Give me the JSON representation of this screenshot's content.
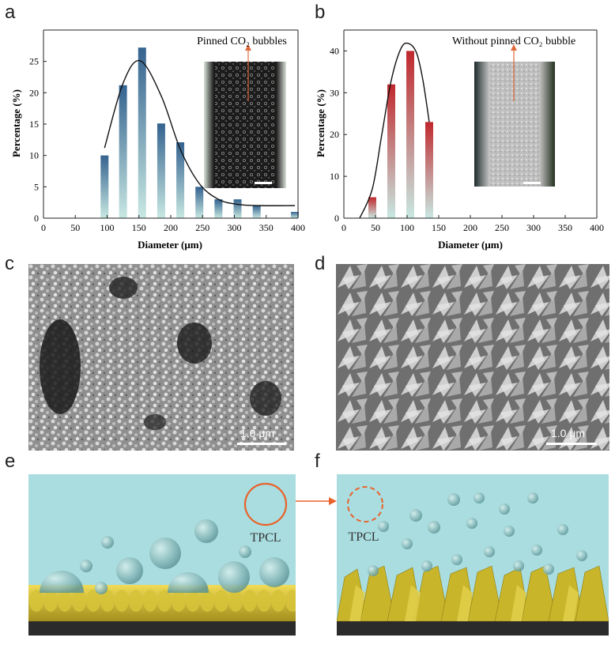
{
  "panels": {
    "a": "a",
    "b": "b",
    "c": "c",
    "d": "d",
    "e": "e",
    "f": "f"
  },
  "chart_data": [
    {
      "id": "a",
      "type": "bar",
      "title": "",
      "annotation": "Pinned CO₂ bubbles",
      "xlabel": "Diameter (μm)",
      "ylabel": "Percentage (%)",
      "xlim": [
        0,
        400
      ],
      "ylim": [
        0,
        30
      ],
      "xticks": [
        0,
        50,
        100,
        150,
        200,
        250,
        300,
        350,
        400
      ],
      "yticks": [
        0,
        5,
        10,
        15,
        20,
        25
      ],
      "x": [
        96,
        125,
        155,
        185,
        215,
        245,
        275,
        305,
        335,
        395
      ],
      "values": [
        10,
        21.2,
        27.2,
        15.1,
        12.1,
        5,
        3,
        3,
        2,
        1
      ],
      "fit_curve": [
        [
          96,
          11.2
        ],
        [
          125,
          21.5
        ],
        [
          152,
          25.1
        ],
        [
          185,
          19.5
        ],
        [
          215,
          11.0
        ],
        [
          245,
          5.5
        ],
        [
          275,
          3.0
        ],
        [
          305,
          2.2
        ],
        [
          340,
          2.0
        ],
        [
          395,
          2.0
        ]
      ],
      "bar_color_top": "#3b6b97",
      "bar_color_bottom": "#c6e6e0"
    },
    {
      "id": "b",
      "type": "bar",
      "title": "",
      "annotation": "Without pinned CO₂ bubble",
      "xlabel": "Diameter (μm)",
      "ylabel": "Percentage (%)",
      "xlim": [
        0,
        400
      ],
      "ylim": [
        0,
        45
      ],
      "xticks": [
        0,
        50,
        100,
        150,
        200,
        250,
        300,
        350,
        400
      ],
      "yticks": [
        0,
        10,
        20,
        30,
        40
      ],
      "x": [
        45,
        75,
        105,
        135
      ],
      "values": [
        5,
        32,
        40,
        23
      ],
      "fit_curve": [
        [
          25,
          0
        ],
        [
          45,
          7
        ],
        [
          60,
          20
        ],
        [
          75,
          33
        ],
        [
          90,
          40.5
        ],
        [
          102,
          41.8
        ],
        [
          115,
          39.5
        ],
        [
          125,
          33
        ],
        [
          135,
          23
        ]
      ],
      "bar_color_top": "#c0282d",
      "bar_color_bottom": "#c6e6e0"
    }
  ],
  "sem": {
    "c_scale": "1.0 μm",
    "d_scale": "1.0 μm"
  },
  "schematic": {
    "e_label": "TPCL",
    "f_label": "TPCL",
    "water_color": "#a9dde0",
    "accent": "#e8622a",
    "catalyst_color": "#c9b52a"
  }
}
